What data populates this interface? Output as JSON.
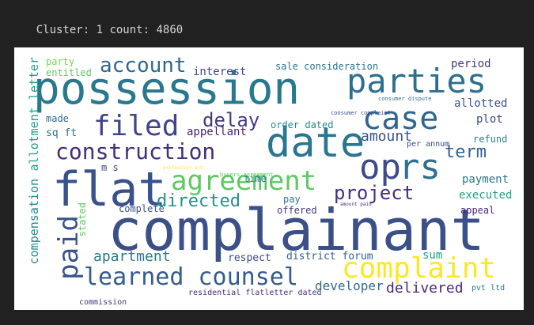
{
  "header": {
    "cluster_label": "Cluster: ",
    "cluster_id": "1",
    "count_label": "count: ",
    "count_value": "4860"
  },
  "colors": {
    "background": "#212121",
    "text": "#d4d4d4",
    "cloud_background": "#ffffff"
  },
  "wordcloud": {
    "words": [
      {
        "text": "complainant",
        "color": "#3b5088"
      },
      {
        "text": "possession",
        "color": "#2a788e"
      },
      {
        "text": "parties",
        "color": "#2c6f8e"
      },
      {
        "text": "flat",
        "color": "#3a528b"
      },
      {
        "text": "date",
        "color": "#2a768e"
      },
      {
        "text": "case",
        "color": "#31678e"
      },
      {
        "text": "op",
        "color": "#3e4a89"
      },
      {
        "text": "rs",
        "color": "#2d6f8e"
      },
      {
        "text": "agreement",
        "color": "#5ec962"
      },
      {
        "text": "complaint",
        "color": "#fde725"
      },
      {
        "text": "learned counsel",
        "color": "#365c8d"
      },
      {
        "text": "filed",
        "color": "#414487"
      },
      {
        "text": "construction",
        "color": "#472d7b"
      },
      {
        "text": "account",
        "color": "#31688e"
      },
      {
        "text": "paid",
        "color": "#3b528b"
      },
      {
        "text": "project",
        "color": "#46327e"
      },
      {
        "text": "directed",
        "color": "#21918c"
      },
      {
        "text": "delay",
        "color": "#443a83"
      },
      {
        "text": "term",
        "color": "#34618d"
      },
      {
        "text": "apartment",
        "color": "#2a788e"
      },
      {
        "text": "amount",
        "color": "#3b528b"
      },
      {
        "text": "developer",
        "color": "#31688e"
      },
      {
        "text": "delivered",
        "color": "#482878"
      },
      {
        "text": "district forum",
        "color": "#33638d"
      },
      {
        "text": "respect",
        "color": "#3e4989"
      },
      {
        "text": "appellant",
        "color": "#481f70"
      },
      {
        "text": "order dated",
        "color": "#23898e"
      },
      {
        "text": "sale consideration",
        "color": "#2c728e"
      },
      {
        "text": "interest",
        "color": "#3e4989"
      },
      {
        "text": "entitled",
        "color": "#5ec962"
      },
      {
        "text": "party",
        "color": "#7ad151"
      },
      {
        "text": "made",
        "color": "#31688e"
      },
      {
        "text": "sq ft",
        "color": "#2c728e"
      },
      {
        "text": "m s",
        "color": "#414487"
      },
      {
        "text": "time",
        "color": "#287c8e"
      },
      {
        "text": "payment",
        "color": "#2a788e"
      },
      {
        "text": "executed",
        "color": "#20a386"
      },
      {
        "text": "refund",
        "color": "#27808e"
      },
      {
        "text": "plot",
        "color": "#3e4989"
      },
      {
        "text": "allotted",
        "color": "#3b528b"
      },
      {
        "text": "period",
        "color": "#453781"
      },
      {
        "text": "appeal",
        "color": "#482878"
      },
      {
        "text": "sum",
        "color": "#1f9e89"
      },
      {
        "text": "pay",
        "color": "#2a788e"
      },
      {
        "text": "offered",
        "color": "#453781"
      },
      {
        "text": "complete",
        "color": "#3b528b"
      },
      {
        "text": "stated",
        "color": "#5ec962"
      },
      {
        "text": "compensation",
        "color": "#23898e"
      },
      {
        "text": "allotment letter",
        "color": "#1f9e89"
      },
      {
        "text": "per annum",
        "color": "#3e4989"
      },
      {
        "text": "commission",
        "color": "#443a83"
      },
      {
        "text": "residential flatletter dated",
        "color": "#472d7b"
      },
      {
        "text": "pvt ltd",
        "color": "#2a788e"
      },
      {
        "text": "consumer complaint",
        "color": "#3e4989"
      },
      {
        "text": "amount paid",
        "color": "#46337f"
      },
      {
        "text": "protection act",
        "color": "#fde725"
      },
      {
        "text": "buyers agreement",
        "color": "#5ec962"
      },
      {
        "text": "consumer dispute",
        "color": "#2c728e"
      }
    ]
  }
}
